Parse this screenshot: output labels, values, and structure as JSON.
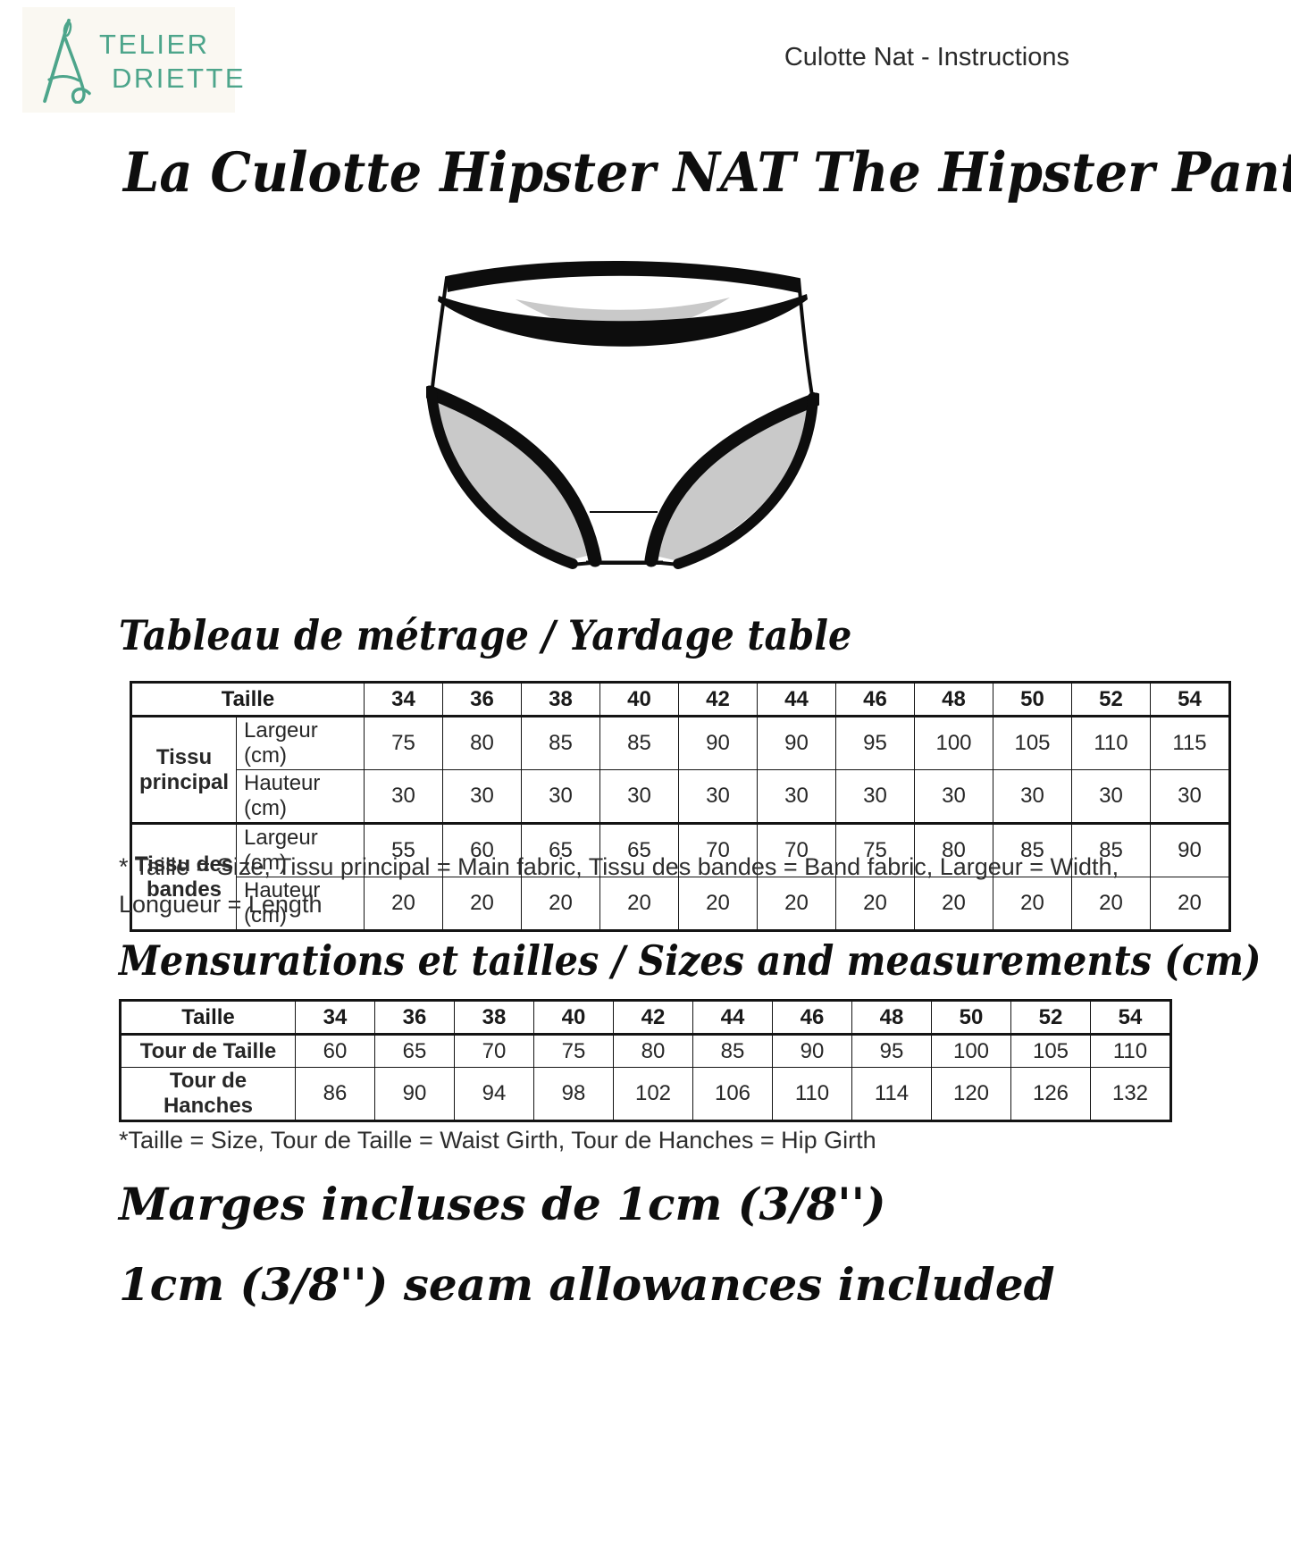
{
  "brand": {
    "line1": "TELIER",
    "line2": "DRIETTE",
    "color": "#4da58b",
    "logo_icon": "needle-thread-letter-A"
  },
  "header": {
    "doc_title": "Culotte Nat - Instructions"
  },
  "title": "La Culotte Hipster NAT The Hipster Panties",
  "illustration": {
    "name": "hipster-panties-line-drawing",
    "ink": "#0d0d0d",
    "shade": "#c9c9c9"
  },
  "yardage": {
    "heading": "Tableau de métrage / Yardage table",
    "corner_label": "Taille",
    "sizes": [
      "34",
      "36",
      "38",
      "40",
      "42",
      "44",
      "46",
      "48",
      "50",
      "52",
      "54"
    ],
    "row_groups": [
      {
        "label": "Tissu principal",
        "rows": [
          {
            "label": "Largeur (cm)",
            "values": [
              "75",
              "80",
              "85",
              "85",
              "90",
              "90",
              "95",
              "100",
              "105",
              "110",
              "115"
            ]
          },
          {
            "label": "Hauteur (cm)",
            "values": [
              "30",
              "30",
              "30",
              "30",
              "30",
              "30",
              "30",
              "30",
              "30",
              "30",
              "30"
            ]
          }
        ]
      },
      {
        "label": "Tissu des bandes",
        "rows": [
          {
            "label": "Largeur (cm)",
            "values": [
              "55",
              "60",
              "65",
              "65",
              "70",
              "70",
              "75",
              "80",
              "85",
              "85",
              "90"
            ]
          },
          {
            "label": "Hauteur (cm)",
            "values": [
              "20",
              "20",
              "20",
              "20",
              "20",
              "20",
              "20",
              "20",
              "20",
              "20",
              "20"
            ]
          }
        ]
      }
    ],
    "note": "* Taille = Size, Tissu principal = Main fabric, Tissu des bandes = Band fabric, Largeur = Width, Longueur = Length"
  },
  "measurements": {
    "heading": "Mensurations et tailles / Sizes and measurements (cm)",
    "corner_label": "Taille",
    "sizes": [
      "34",
      "36",
      "38",
      "40",
      "42",
      "44",
      "46",
      "48",
      "50",
      "52",
      "54"
    ],
    "rows": [
      {
        "label": "Tour de Taille",
        "values": [
          "60",
          "65",
          "70",
          "75",
          "80",
          "85",
          "90",
          "95",
          "100",
          "105",
          "110"
        ]
      },
      {
        "label": "Tour de Hanches",
        "values": [
          "86",
          "90",
          "94",
          "98",
          "102",
          "106",
          "110",
          "114",
          "120",
          "126",
          "132"
        ]
      }
    ],
    "note": "*Taille = Size, Tour de Taille = Waist Girth, Tour de Hanches = Hip Girth"
  },
  "footer_lines": {
    "fr": "Marges incluses de 1cm (3/8'')",
    "en": "1cm (3/8'') seam allowances included"
  }
}
